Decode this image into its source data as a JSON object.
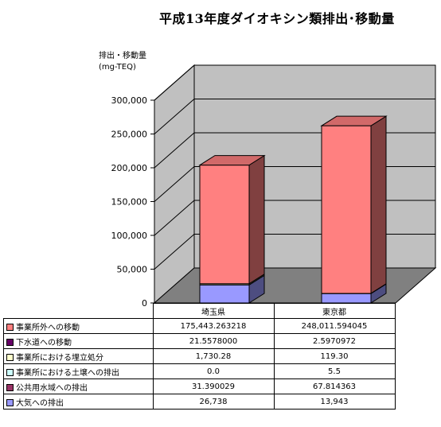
{
  "chart_data": {
    "type": "bar",
    "title": "平成13年度ダイオキシン類排出･移動量",
    "ylabel_lines": [
      "排出・移動量",
      "(mg-TEQ)"
    ],
    "categories": [
      "埼玉県",
      "東京都"
    ],
    "ylim": [
      0,
      300000
    ],
    "yticks": [
      "0",
      "50,000",
      "100,000",
      "150,000",
      "200,000",
      "250,000",
      "300,000"
    ],
    "grid": true,
    "stacked": true,
    "legend": "table",
    "series": [
      {
        "name": "事業所外への移動",
        "color": "#ff8080",
        "values": [
          175443.263218,
          248011.594045
        ],
        "labels": [
          "175,443.263218",
          "248,011.594045"
        ]
      },
      {
        "name": "下水道への移動",
        "color": "#660066",
        "values": [
          21.5578,
          2.5970972
        ],
        "labels": [
          "21.5578000",
          "2.5970972"
        ]
      },
      {
        "name": "事業所における埋立処分",
        "color": "#ffffcc",
        "values": [
          1730.28,
          119.3
        ],
        "labels": [
          "1,730.28",
          "119.30"
        ]
      },
      {
        "name": "事業所における土壌への排出",
        "color": "#ccffff",
        "values": [
          0,
          5.5
        ],
        "labels": [
          "0.0",
          "5.5"
        ]
      },
      {
        "name": "公共用水域への排出",
        "color": "#993366",
        "values": [
          31.390029,
          67.814363
        ],
        "labels": [
          "31.390029",
          "67.814363"
        ]
      },
      {
        "name": "大気への排出",
        "color": "#9999ff",
        "values": [
          26738,
          13943
        ],
        "labels": [
          "26,738",
          "13,943"
        ]
      }
    ]
  }
}
